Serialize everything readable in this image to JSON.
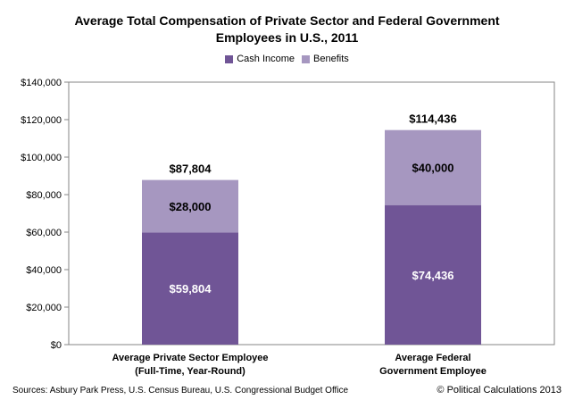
{
  "chart_data": {
    "type": "bar",
    "stacked": true,
    "title_line1": "Average Total Compensation of Private Sector and Federal Government",
    "title_line2": "Employees in U.S., 2011",
    "categories": [
      [
        "Average Private Sector Employee",
        "(Full-Time, Year-Round)"
      ],
      [
        "Average Federal",
        "Government Employee"
      ]
    ],
    "series": [
      {
        "name": "Cash Income",
        "values": [
          59804,
          74436
        ],
        "labels": [
          "$59,804",
          "$74,436"
        ],
        "color": "#705596"
      },
      {
        "name": "Benefits",
        "values": [
          28000,
          40000
        ],
        "labels": [
          "$28,000",
          "$40,000"
        ],
        "color": "#a697c0"
      }
    ],
    "totals": [
      87804,
      114436
    ],
    "total_labels": [
      "$87,804",
      "$114,436"
    ],
    "ylim": [
      0,
      140000
    ],
    "yticks": [
      0,
      20000,
      40000,
      60000,
      80000,
      100000,
      120000,
      140000
    ],
    "ytick_labels": [
      "$0",
      "$20,000",
      "$40,000",
      "$60,000",
      "$80,000",
      "$100,000",
      "$120,000",
      "$140,000"
    ],
    "legend_position": "top-center",
    "grid": false
  },
  "footer": {
    "source": "Sources: Asbury Park Press, U.S. Census Bureau, U.S. Congressional Budget Office",
    "credit": "© Political Calculations 2013"
  }
}
